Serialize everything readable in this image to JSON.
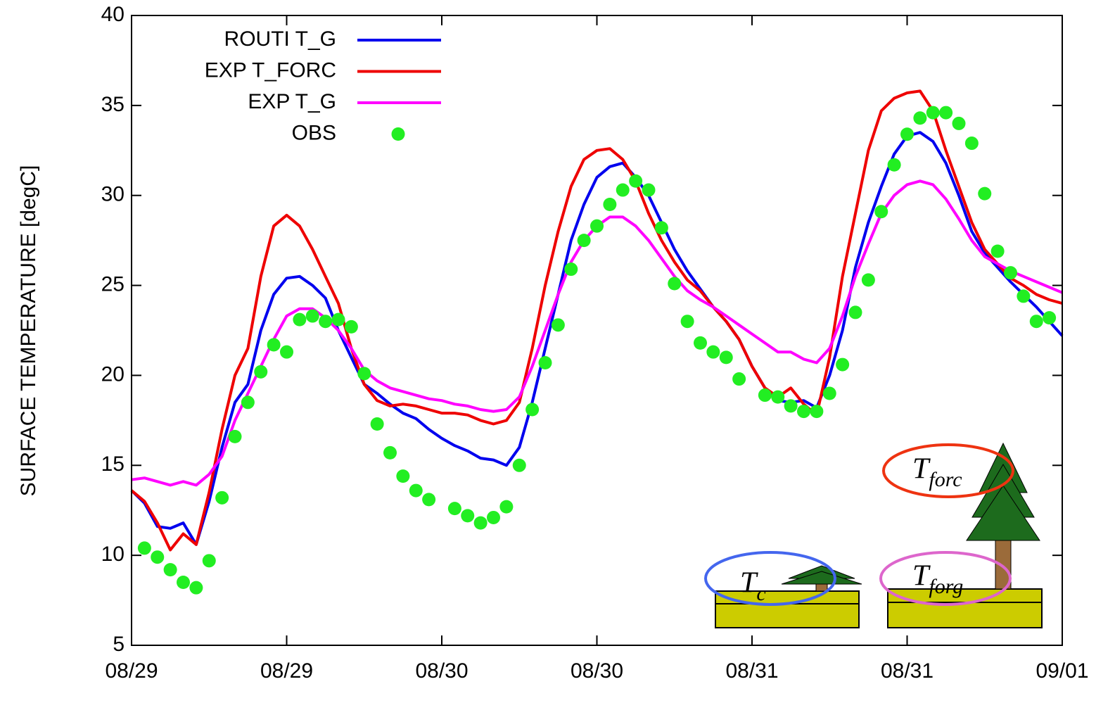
{
  "chart_data": {
    "type": "line",
    "y_label": "SURFACE TEMPERATURE  [degC]",
    "xlim": [
      0,
      72
    ],
    "ylim": [
      5,
      40
    ],
    "xticks": [
      {
        "value": 0,
        "label": "08/29"
      },
      {
        "value": 12,
        "label": "08/29"
      },
      {
        "value": 24,
        "label": "08/30"
      },
      {
        "value": 36,
        "label": "08/30"
      },
      {
        "value": 48,
        "label": "08/31"
      },
      {
        "value": 60,
        "label": "08/31"
      },
      {
        "value": 72,
        "label": "09/01"
      }
    ],
    "yticks": [
      5,
      10,
      15,
      20,
      25,
      30,
      35,
      40
    ],
    "legend": "upper left",
    "series": [
      {
        "name": "ROUTI T_G",
        "color": "#0000ee",
        "mode": "line",
        "x": [
          0,
          1,
          2,
          3,
          4,
          5,
          6,
          7,
          8,
          9,
          10,
          11,
          12,
          13,
          14,
          15,
          16,
          17,
          18,
          19,
          20,
          21,
          22,
          23,
          24,
          25,
          26,
          27,
          28,
          29,
          30,
          31,
          32,
          33,
          34,
          35,
          36,
          37,
          38,
          39,
          40,
          41,
          42,
          43,
          44,
          45,
          46,
          47,
          48,
          49,
          50,
          51,
          52,
          53,
          54,
          55,
          56,
          57,
          58,
          59,
          60,
          61,
          62,
          63,
          64,
          65,
          66,
          67,
          68,
          69,
          70,
          71,
          72
        ],
        "values": [
          13.6,
          12.9,
          11.6,
          11.5,
          11.8,
          10.6,
          13.0,
          16.0,
          18.5,
          19.5,
          22.5,
          24.5,
          25.4,
          25.5,
          25.0,
          24.3,
          22.5,
          21.0,
          19.5,
          19.0,
          18.4,
          17.9,
          17.6,
          17.0,
          16.5,
          16.1,
          15.8,
          15.4,
          15.3,
          15.0,
          16.0,
          18.5,
          21.5,
          24.5,
          27.5,
          29.5,
          31.0,
          31.6,
          31.8,
          31.0,
          30.0,
          28.5,
          27.0,
          25.8,
          24.8,
          23.8,
          23.0,
          22.0,
          20.5,
          19.3,
          18.6,
          18.5,
          18.6,
          18.2,
          20.0,
          22.5,
          26.0,
          28.5,
          30.5,
          32.3,
          33.3,
          33.5,
          33.0,
          31.8,
          30.0,
          28.0,
          26.8,
          26.0,
          25.2,
          24.5,
          23.8,
          23.0,
          22.2
        ]
      },
      {
        "name": "EXP T_FORC",
        "color": "#ee0000",
        "mode": "line",
        "x": [
          0,
          1,
          2,
          3,
          4,
          5,
          6,
          7,
          8,
          9,
          10,
          11,
          12,
          13,
          14,
          15,
          16,
          17,
          18,
          19,
          20,
          21,
          22,
          23,
          24,
          25,
          26,
          27,
          28,
          29,
          30,
          31,
          32,
          33,
          34,
          35,
          36,
          37,
          38,
          39,
          40,
          41,
          42,
          43,
          44,
          45,
          46,
          47,
          48,
          49,
          50,
          51,
          52,
          53,
          54,
          55,
          56,
          57,
          58,
          59,
          60,
          61,
          62,
          63,
          64,
          65,
          66,
          67,
          68,
          69,
          70,
          71,
          72
        ],
        "values": [
          13.6,
          13.0,
          11.8,
          10.3,
          11.2,
          10.6,
          13.5,
          17.0,
          20.0,
          21.5,
          25.5,
          28.3,
          28.9,
          28.3,
          27.0,
          25.5,
          24.0,
          21.5,
          19.5,
          18.6,
          18.3,
          18.4,
          18.3,
          18.1,
          17.9,
          17.9,
          17.8,
          17.5,
          17.3,
          17.5,
          18.5,
          21.5,
          25.0,
          28.0,
          30.5,
          32.0,
          32.5,
          32.6,
          32.0,
          30.8,
          29.0,
          27.5,
          26.3,
          25.3,
          24.7,
          23.8,
          23.0,
          22.0,
          20.5,
          19.3,
          18.8,
          19.3,
          18.4,
          17.8,
          21.0,
          25.5,
          29.0,
          32.5,
          34.7,
          35.4,
          35.7,
          35.8,
          34.7,
          32.5,
          30.5,
          28.5,
          27.0,
          26.2,
          25.4,
          25.0,
          24.5,
          24.2,
          24.0
        ]
      },
      {
        "name": "EXP T_G",
        "color": "#ff00ff",
        "mode": "line",
        "x": [
          0,
          1,
          2,
          3,
          4,
          5,
          6,
          7,
          8,
          9,
          10,
          11,
          12,
          13,
          14,
          15,
          16,
          17,
          18,
          19,
          20,
          21,
          22,
          23,
          24,
          25,
          26,
          27,
          28,
          29,
          30,
          31,
          32,
          33,
          34,
          35,
          36,
          37,
          38,
          39,
          40,
          41,
          42,
          43,
          44,
          45,
          46,
          47,
          48,
          49,
          50,
          51,
          52,
          53,
          54,
          55,
          56,
          57,
          58,
          59,
          60,
          61,
          62,
          63,
          64,
          65,
          66,
          67,
          68,
          69,
          70,
          71,
          72
        ],
        "values": [
          14.2,
          14.3,
          14.1,
          13.9,
          14.1,
          13.9,
          14.5,
          15.5,
          17.5,
          19.0,
          20.5,
          22.0,
          23.3,
          23.7,
          23.7,
          23.2,
          22.5,
          21.5,
          20.3,
          19.7,
          19.3,
          19.1,
          18.9,
          18.7,
          18.6,
          18.4,
          18.3,
          18.1,
          18.0,
          18.1,
          18.8,
          20.5,
          22.5,
          24.5,
          26.3,
          27.5,
          28.3,
          28.8,
          28.8,
          28.3,
          27.5,
          26.5,
          25.5,
          24.7,
          24.2,
          23.8,
          23.3,
          22.8,
          22.3,
          21.8,
          21.3,
          21.3,
          20.9,
          20.7,
          21.5,
          23.3,
          25.5,
          27.3,
          29.0,
          30.0,
          30.6,
          30.8,
          30.6,
          29.8,
          28.7,
          27.5,
          26.6,
          26.2,
          25.8,
          25.5,
          25.2,
          24.9,
          24.6
        ]
      },
      {
        "name": "OBS",
        "color": "#22ee22",
        "mode": "markers",
        "x": [
          1,
          2,
          3,
          4,
          5,
          6,
          7,
          8,
          9,
          10,
          11,
          12,
          13,
          14,
          15,
          16,
          17,
          18,
          19,
          20,
          21,
          22,
          23,
          25,
          26,
          27,
          28,
          29,
          30,
          31,
          32,
          33,
          34,
          35,
          36,
          37,
          38,
          39,
          40,
          41,
          42,
          43,
          44,
          45,
          46,
          47,
          49,
          50,
          51,
          52,
          53,
          54,
          55,
          56,
          57,
          58,
          59,
          60,
          61,
          62,
          63,
          64,
          65,
          66,
          67,
          68,
          69,
          70,
          71
        ],
        "values": [
          10.4,
          9.9,
          9.2,
          8.5,
          8.2,
          9.7,
          13.2,
          16.6,
          18.5,
          20.2,
          21.7,
          21.3,
          23.1,
          23.3,
          23.0,
          23.1,
          22.7,
          20.1,
          17.3,
          15.7,
          14.4,
          13.6,
          13.1,
          12.6,
          12.2,
          11.8,
          12.1,
          12.7,
          15.0,
          18.1,
          20.7,
          22.8,
          25.9,
          27.5,
          28.3,
          29.5,
          30.3,
          30.8,
          30.3,
          28.2,
          25.1,
          23.0,
          21.8,
          21.3,
          21.0,
          19.8,
          18.9,
          18.8,
          18.3,
          18.0,
          18.0,
          19.0,
          20.6,
          23.5,
          25.3,
          29.1,
          31.7,
          33.4,
          34.3,
          34.6,
          34.6,
          34.0,
          32.9,
          30.1,
          26.9,
          25.7,
          24.4,
          23.0,
          23.2
        ]
      }
    ],
    "annotations": [
      {
        "text": "T",
        "sub": "c"
      },
      {
        "text": "T",
        "sub": "forc"
      },
      {
        "text": "T",
        "sub": "forg"
      }
    ]
  }
}
